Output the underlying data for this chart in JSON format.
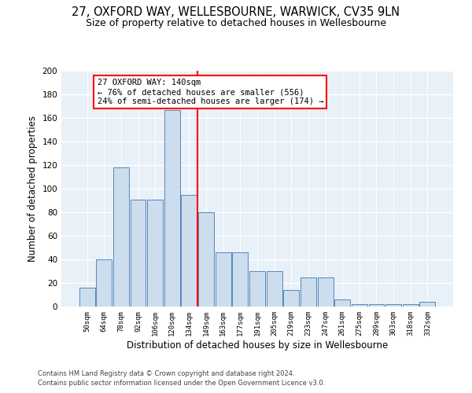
{
  "title1": "27, OXFORD WAY, WELLESBOURNE, WARWICK, CV35 9LN",
  "title2": "Size of property relative to detached houses in Wellesbourne",
  "xlabel": "Distribution of detached houses by size in Wellesbourne",
  "ylabel": "Number of detached properties",
  "footer1": "Contains HM Land Registry data © Crown copyright and database right 2024.",
  "footer2": "Contains public sector information licensed under the Open Government Licence v3.0.",
  "bin_labels": [
    "50sqm",
    "64sqm",
    "78sqm",
    "92sqm",
    "106sqm",
    "120sqm",
    "134sqm",
    "149sqm",
    "163sqm",
    "177sqm",
    "191sqm",
    "205sqm",
    "219sqm",
    "233sqm",
    "247sqm",
    "261sqm",
    "275sqm",
    "289sqm",
    "303sqm",
    "318sqm",
    "332sqm"
  ],
  "bar_heights": [
    16,
    40,
    118,
    91,
    91,
    167,
    95,
    80,
    46,
    46,
    30,
    30,
    14,
    25,
    25,
    6,
    2,
    2,
    2,
    2,
    4
  ],
  "bar_color": "#ccdded",
  "bar_edge_color": "#5588bb",
  "vline_x": 6.5,
  "vline_color": "red",
  "annotation_text": "27 OXFORD WAY: 140sqm\n← 76% of detached houses are smaller (556)\n24% of semi-detached houses are larger (174) →",
  "annotation_box_color": "white",
  "annotation_box_edge_color": "red",
  "ylim": [
    0,
    200
  ],
  "yticks": [
    0,
    20,
    40,
    60,
    80,
    100,
    120,
    140,
    160,
    180,
    200
  ],
  "background_color": "#e8f0f8",
  "grid_color": "white",
  "title1_fontsize": 10.5,
  "title2_fontsize": 9,
  "xlabel_fontsize": 8.5,
  "ylabel_fontsize": 8.5,
  "annotation_fontsize": 7.5,
  "footer_fontsize": 6
}
